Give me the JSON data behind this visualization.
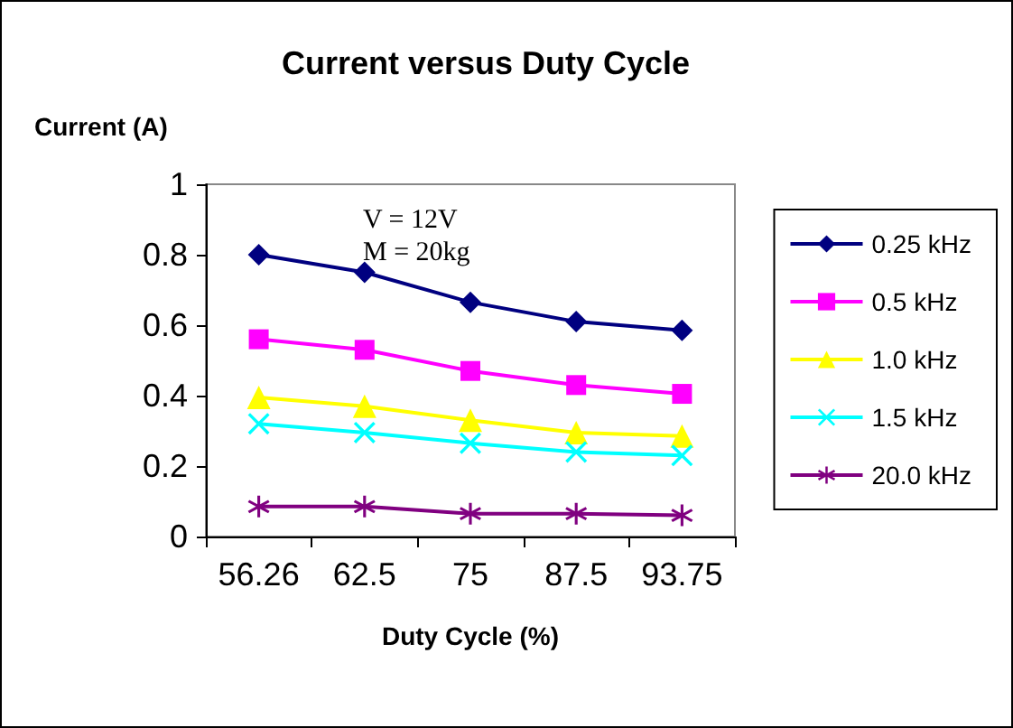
{
  "chart_data": {
    "type": "line",
    "title": "Current versus Duty Cycle",
    "xlabel": "Duty Cycle (%)",
    "ylabel": "Current (A)",
    "categories": [
      "56.26",
      "62.5",
      "75",
      "87.5",
      "93.75"
    ],
    "series": [
      {
        "name": "0.25 kHz",
        "color": "#000080",
        "marker": "diamond",
        "values": [
          0.8,
          0.75,
          0.665,
          0.61,
          0.585
        ]
      },
      {
        "name": "0.5 kHz",
        "color": "#ff00ff",
        "marker": "square",
        "values": [
          0.56,
          0.53,
          0.47,
          0.43,
          0.405
        ]
      },
      {
        "name": "1.0 kHz",
        "color": "#ffff00",
        "marker": "triangle",
        "values": [
          0.395,
          0.37,
          0.33,
          0.295,
          0.285
        ]
      },
      {
        "name": "1.5 kHz",
        "color": "#00ffff",
        "marker": "cross",
        "values": [
          0.32,
          0.295,
          0.265,
          0.24,
          0.23
        ]
      },
      {
        "name": "20.0 kHz",
        "color": "#800080",
        "marker": "star",
        "values": [
          0.085,
          0.085,
          0.065,
          0.065,
          0.06
        ]
      }
    ],
    "ylim": [
      0,
      1
    ],
    "yticks": [
      0,
      0.2,
      0.4,
      0.6,
      0.8,
      1
    ],
    "grid": false,
    "legend": "right",
    "line_style": "solid",
    "annotations": [
      "V = 12V\nM = 20kg"
    ]
  }
}
